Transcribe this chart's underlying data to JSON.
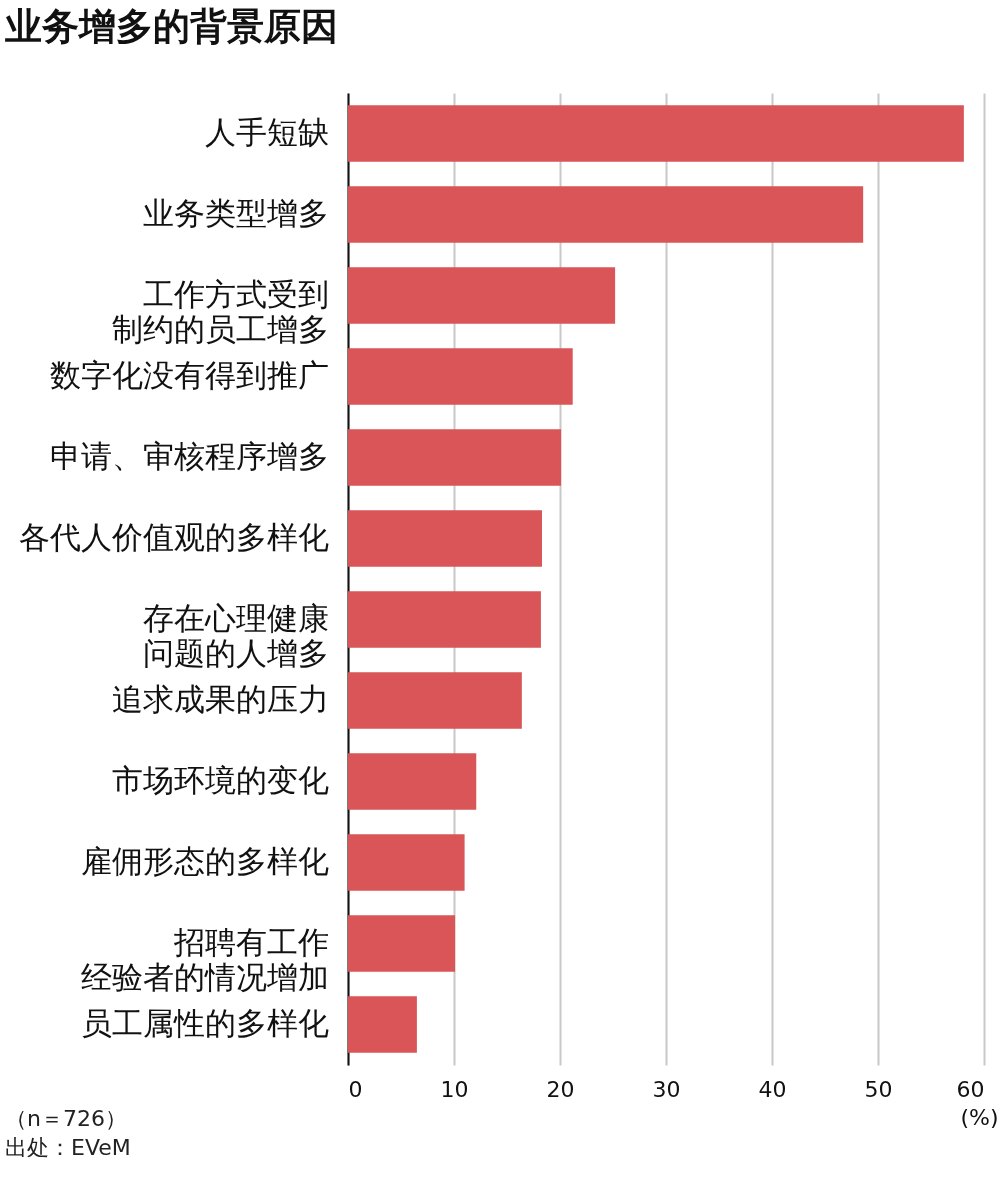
{
  "chart_data": {
    "type": "bar",
    "orientation": "horizontal",
    "title": "业务增多的背景原因",
    "categories": [
      "人手短缺",
      "业务类型增多",
      "工作方式受到制约的员工增多",
      "数字化没有得到推广",
      "申请、审核程序增多",
      "各代人价值观的多样化",
      "存在心理健康问题的人增多",
      "追求成果的压力",
      "市场环境的变化",
      "雇佣形态的多样化",
      "招聘有工作经验者的情况增加",
      "员工属性的多样化"
    ],
    "values": [
      58.1,
      48.6,
      25.2,
      21.2,
      20.1,
      18.3,
      18.2,
      16.4,
      12.1,
      11.0,
      10.1,
      6.5
    ],
    "color": "#d95557",
    "xlim": [
      0,
      60
    ],
    "xticks": [
      0,
      10,
      20,
      30,
      40,
      50,
      60
    ],
    "xlabel": "(%)",
    "grid": "x",
    "annotations": [
      "（n＝726）",
      "出处：EVeM"
    ]
  }
}
